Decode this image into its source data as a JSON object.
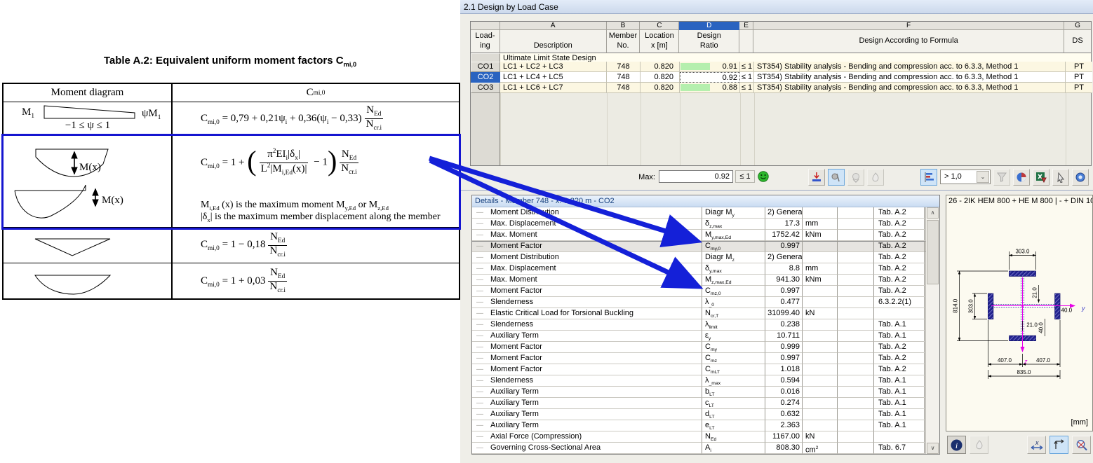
{
  "doc": {
    "title_pre": "Table A.2:  Equivalent uniform moment factors C",
    "title_sub": "mi,0",
    "header_col1": "Moment diagram",
    "header_col2": "C_{mi,0}",
    "row1": {
      "m_left": "M_{1}",
      "m_right": "ψM_{1}",
      "range": "−1 ≤ ψ ≤ 1",
      "formula_pre": "C_{mi,0} = 0,79 + 0,21ψ_{i} + 0,36(ψ_{i} − 0,33)",
      "frac_num": "N_{Ed}",
      "frac_den": "N_{cr.i}"
    },
    "row2": {
      "m_label1": "M(x)",
      "m_label2": "M(x)",
      "formula_pre": "C_{mi,0} = 1 +",
      "inner_num": "π^{2}EI_{i}|δ_{x}|",
      "inner_den": "L^{2}|M_{i,Ed}(x)|",
      "after_inner": "− 1",
      "frac_num": "N_{Ed}",
      "frac_den": "N_{cr.i}",
      "note1": "M_{i,Ed} (x) is the maximum moment M_{y,Ed} or M_{z,Ed}",
      "note2": "|δ_{x}| is the maximum member displacement along the member"
    },
    "row3": {
      "formula_pre": "C_{mi,0} = 1 − 0,18",
      "frac_num": "N_{Ed}",
      "frac_den": "N_{cr.i}"
    },
    "row4": {
      "formula_pre": "C_{mi,0} = 1 + 0,03",
      "frac_num": "N_{Ed}",
      "frac_den": "N_{cr.i}"
    }
  },
  "design_table": {
    "window_title": "2.1 Design by Load Case",
    "col_letters": [
      "A",
      "B",
      "C",
      "D",
      "E",
      "F",
      "G"
    ],
    "headers": {
      "loading1": "Load-",
      "loading2": "ing",
      "description": "Description",
      "member1": "Member",
      "member2": "No.",
      "location1": "Location",
      "location2": "x [m]",
      "design1": "Design",
      "design2": "Ratio",
      "formula": "Design According to Formula",
      "ds": "DS"
    },
    "section_label": "Ultimate Limit State Design",
    "rows": [
      {
        "id": "CO1",
        "desc": "LC1 + LC2 + LC3",
        "member": "748",
        "loc": "0.820",
        "ratio": "0.91",
        "lim": "≤ 1",
        "formula": "ST354) Stability analysis - Bending and compression acc. to 6.3.3, Method 1",
        "ds": "PT",
        "selected": false
      },
      {
        "id": "CO2",
        "desc": "LC1 + LC4 + LC5",
        "member": "748",
        "loc": "0.820",
        "ratio": "0.92",
        "lim": "≤ 1",
        "formula": "ST354) Stability analysis - Bending and compression acc. to 6.3.3, Method 1",
        "ds": "PT",
        "selected": true
      },
      {
        "id": "CO3",
        "desc": "LC1 + LC6 + LC7",
        "member": "748",
        "loc": "0.820",
        "ratio": "0.88",
        "lim": "≤ 1",
        "formula": "ST354) Stability analysis - Bending and compression acc. to 6.3.3, Method 1",
        "ds": "PT",
        "selected": false
      }
    ]
  },
  "toolbar": {
    "max_label": "Max:",
    "max_value": "0.92",
    "limit_label": "≤ 1",
    "threshold_value": "> 1,0",
    "dropdown_arrow": "⌄",
    "scroll_up": "∧",
    "scroll_down": "∨"
  },
  "details": {
    "title": "Details - Member 748 - x: 0.820 m - CO2",
    "rows": [
      {
        "label": "Moment Distribution",
        "sym": "Diagr M_{y}",
        "val": "2) General",
        "va": "l",
        "unit": "",
        "ref": "Tab. A.2",
        "hl": false
      },
      {
        "label": "Max. Displacement",
        "sym": "δ_{z,max}",
        "val": "17.3",
        "va": "r",
        "unit": "mm",
        "ref": "Tab. A.2",
        "hl": false
      },
      {
        "label": "Max. Moment",
        "sym": "M_{y,max,Ed}",
        "val": "1752.42",
        "va": "r",
        "unit": "kNm",
        "ref": "Tab. A.2",
        "hl": false
      },
      {
        "label": "Moment Factor",
        "sym": "C_{my,0}",
        "val": "0.997",
        "va": "r",
        "unit": "",
        "ref": "Tab. A.2",
        "hl": true
      },
      {
        "label": "Moment Distribution",
        "sym": "Diagr M_{z}",
        "val": "2) General",
        "va": "l",
        "unit": "",
        "ref": "Tab. A.2",
        "hl": false
      },
      {
        "label": "Max. Displacement",
        "sym": "δ_{y,max}",
        "val": "8.8",
        "va": "r",
        "unit": "mm",
        "ref": "Tab. A.2",
        "hl": false
      },
      {
        "label": "Max. Moment",
        "sym": "M_{z,max,Ed}",
        "val": "941.30",
        "va": "r",
        "unit": "kNm",
        "ref": "Tab. A.2",
        "hl": false
      },
      {
        "label": "Moment Factor",
        "sym": "C_{mz,0}",
        "val": "0.997",
        "va": "r",
        "unit": "",
        "ref": "Tab. A.2",
        "hl": false
      },
      {
        "label": "Slenderness",
        "sym": "λ_{_0}",
        "val": "0.477",
        "va": "r",
        "unit": "",
        "ref": "6.3.2.2(1)",
        "hl": false
      },
      {
        "label": "Elastic Critical Load for Torsional Buckling",
        "sym": "N_{cr,T}",
        "val": "31099.40",
        "va": "r",
        "unit": "kN",
        "ref": "",
        "hl": false
      },
      {
        "label": "Slenderness",
        "sym": "λ_{limit}",
        "val": "0.238",
        "va": "r",
        "unit": "",
        "ref": "Tab. A.1",
        "hl": false
      },
      {
        "label": "Auxiliary Term",
        "sym": "ε_{y}",
        "val": "10.711",
        "va": "r",
        "unit": "",
        "ref": "Tab. A.1",
        "hl": false
      },
      {
        "label": "Moment Factor",
        "sym": "C_{my}",
        "val": "0.999",
        "va": "r",
        "unit": "",
        "ref": "Tab. A.2",
        "hl": false
      },
      {
        "label": "Moment Factor",
        "sym": "C_{mz}",
        "val": "0.997",
        "va": "r",
        "unit": "",
        "ref": "Tab. A.2",
        "hl": false
      },
      {
        "label": "Moment Factor",
        "sym": "C_{mLT}",
        "val": "1.018",
        "va": "r",
        "unit": "",
        "ref": "Tab. A.2",
        "hl": false
      },
      {
        "label": "Slenderness",
        "sym": "λ_{_max}",
        "val": "0.594",
        "va": "r",
        "unit": "",
        "ref": "Tab. A.1",
        "hl": false
      },
      {
        "label": "Auxiliary Term",
        "sym": "b_{LT}",
        "val": "0.016",
        "va": "r",
        "unit": "",
        "ref": "Tab. A.1",
        "hl": false
      },
      {
        "label": "Auxiliary Term",
        "sym": "c_{LT}",
        "val": "0.274",
        "va": "r",
        "unit": "",
        "ref": "Tab. A.1",
        "hl": false
      },
      {
        "label": "Auxiliary Term",
        "sym": "d_{LT}",
        "val": "0.632",
        "va": "r",
        "unit": "",
        "ref": "Tab. A.1",
        "hl": false
      },
      {
        "label": "Auxiliary Term",
        "sym": "e_{LT}",
        "val": "2.363",
        "va": "r",
        "unit": "",
        "ref": "Tab. A.1",
        "hl": false
      },
      {
        "label": "Axial Force (Compression)",
        "sym": "N_{Ed}",
        "val": "1167.00",
        "va": "r",
        "unit": "kN",
        "ref": "",
        "hl": false
      },
      {
        "label": "Governing Cross-Sectional Area",
        "sym": "A_{i}",
        "val": "808.30",
        "va": "r",
        "unit": "cm^{2}",
        "ref": "Tab. 6.7",
        "hl": false
      }
    ]
  },
  "section_panel": {
    "title": "26 - 2IK HEM 800 + HE M 800 | - + DIN 10",
    "unit_label": "[mm]",
    "dims": {
      "top_width": "303.0",
      "total_height": "814.0",
      "left_flange": "303.0",
      "web_top": "21.0",
      "web_right": "40.0",
      "web_bottom": "21.0",
      "flange_bottom": "40.0",
      "half_left": "407.0",
      "half_right": "407.0",
      "total_width": "835.0",
      "axis_y": "y",
      "axis_z": "z"
    }
  },
  "colors": {
    "highlight_blue": "#1515d0",
    "arrow_blue": "#1420d8",
    "selection_blue": "#2a63c0",
    "row_cream": "#fcf7e2",
    "ratio_green": "#b5efae",
    "details_title_text": "#16407e",
    "panel_cream": "#fcfaf0",
    "steel_navy": "#22228e",
    "axis_magenta": "#e800e8",
    "smiley_green": "#2eb82e"
  },
  "icons": {
    "smiley": "green-smiley-ok",
    "toolbar": [
      "jump-to-max",
      "select-in-graphic",
      "show-all",
      "print-rows",
      "result-diagram",
      "filter-funnel",
      "color-scale",
      "excel-export",
      "pick-mode",
      "visibility"
    ],
    "panel_tools": [
      "info",
      "print",
      "x-axis",
      "local-axes",
      "zoom-reset"
    ]
  }
}
